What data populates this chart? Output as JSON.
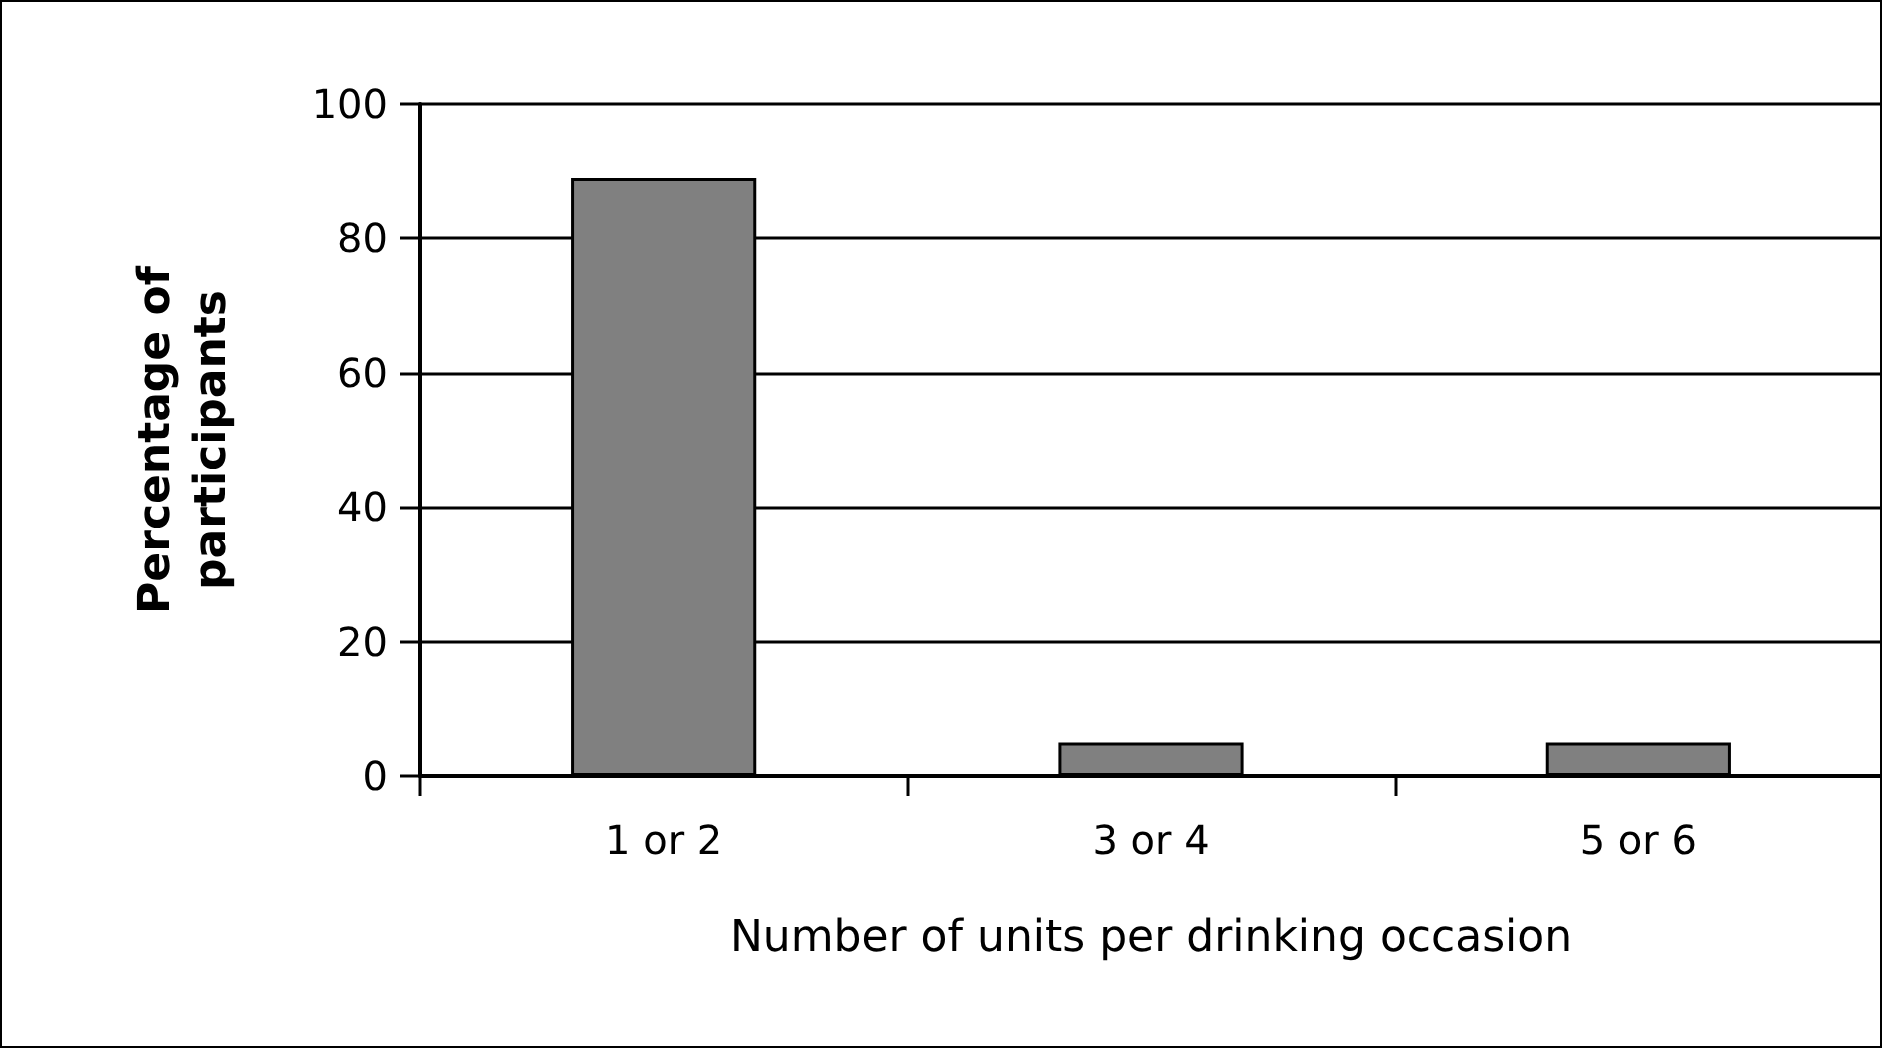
{
  "chart_data": {
    "type": "bar",
    "xlabel": "Number of units per drinking occasion",
    "ylabel": "Percentage of\nparticipants",
    "categories": [
      "1 or 2",
      "3 or 4",
      "5 or 6"
    ],
    "values": [
      89,
      5,
      5
    ],
    "color": "#808080",
    "ylim": [
      0,
      100
    ],
    "yticks": [
      0,
      20,
      40,
      60,
      80,
      100
    ],
    "grid": "y"
  }
}
